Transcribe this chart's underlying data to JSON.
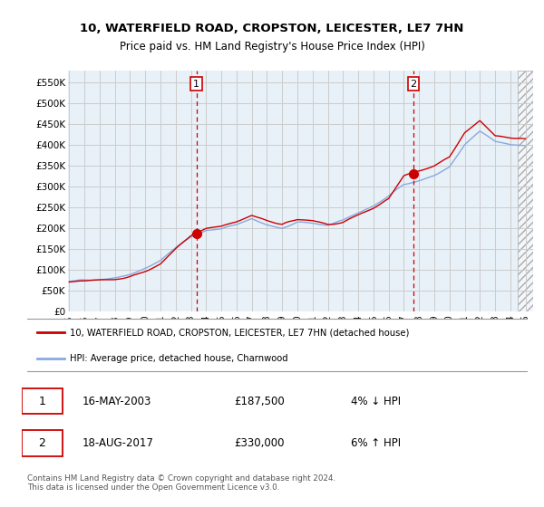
{
  "title": "10, WATERFIELD ROAD, CROPSTON, LEICESTER, LE7 7HN",
  "subtitle": "Price paid vs. HM Land Registry's House Price Index (HPI)",
  "ylim": [
    0,
    577000
  ],
  "yticks": [
    0,
    50000,
    100000,
    150000,
    200000,
    250000,
    300000,
    350000,
    400000,
    450000,
    500000,
    550000
  ],
  "ytick_labels": [
    "£0",
    "£50K",
    "£100K",
    "£150K",
    "£200K",
    "£250K",
    "£300K",
    "£350K",
    "£400K",
    "£450K",
    "£500K",
    "£550K"
  ],
  "property_color": "#cc0000",
  "hpi_color": "#88aadd",
  "annotation_color": "#cc0000",
  "background_color": "#e8f0f8",
  "grid_color": "#cccccc",
  "sale1_x": 2003.37,
  "sale1_y": 187500,
  "sale1_label": "1",
  "sale1_date": "16-MAY-2003",
  "sale1_price": "£187,500",
  "sale1_hpi": "4% ↓ HPI",
  "sale2_x": 2017.63,
  "sale2_y": 330000,
  "sale2_label": "2",
  "sale2_date": "18-AUG-2017",
  "sale2_price": "£330,000",
  "sale2_hpi": "6% ↑ HPI",
  "legend_line1": "10, WATERFIELD ROAD, CROPSTON, LEICESTER, LE7 7HN (detached house)",
  "legend_line2": "HPI: Average price, detached house, Charnwood",
  "footer": "Contains HM Land Registry data © Crown copyright and database right 2024.\nThis data is licensed under the Open Government Licence v3.0.",
  "hatch_start": 2024.5,
  "xlim_left": 1995.0,
  "xlim_right": 2025.5
}
